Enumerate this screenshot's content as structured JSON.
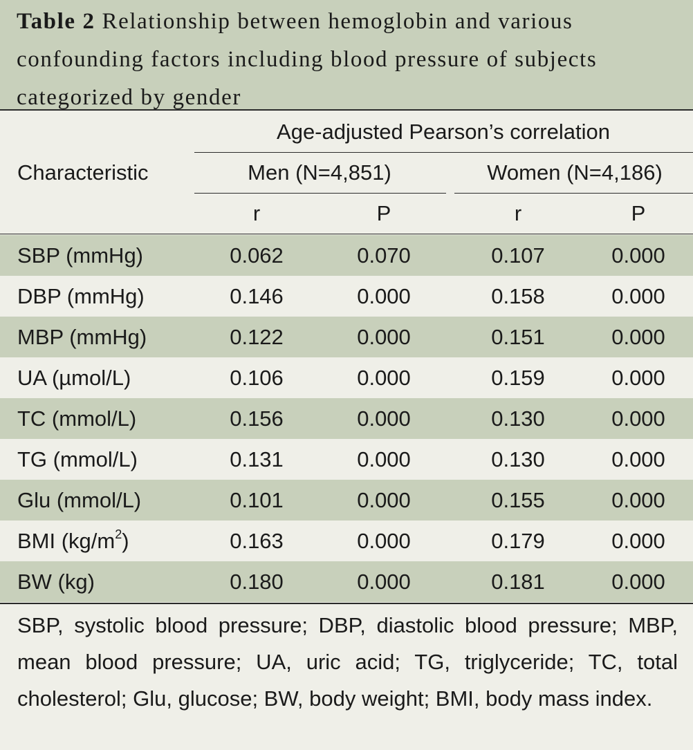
{
  "title": {
    "label": "Table 2",
    "text": "Relationship between hemoglobin and various confounding factors including blood pressure of subjects categorized by gender"
  },
  "header": {
    "characteristic": "Characteristic",
    "group": "Age-adjusted Pearson’s correlation",
    "men": "Men (N=4,851)",
    "women": "Women (N=4,186)",
    "men_r": "r",
    "men_p": "P",
    "women_r": "r",
    "women_p": "P"
  },
  "rows": [
    {
      "name": "SBP (mmHg)",
      "men_r": "0.062",
      "men_p": "0.070",
      "women_r": "0.107",
      "women_p": "0.000"
    },
    {
      "name": "DBP (mmHg)",
      "men_r": "0.146",
      "men_p": "0.000",
      "women_r": "0.158",
      "women_p": "0.000"
    },
    {
      "name": "MBP (mmHg)",
      "men_r": "0.122",
      "men_p": "0.000",
      "women_r": "0.151",
      "women_p": "0.000"
    },
    {
      "name": "UA (µmol/L)",
      "men_r": "0.106",
      "men_p": "0.000",
      "women_r": "0.159",
      "women_p": "0.000"
    },
    {
      "name": "TC (mmol/L)",
      "men_r": "0.156",
      "men_p": "0.000",
      "women_r": "0.130",
      "women_p": "0.000"
    },
    {
      "name": "TG (mmol/L)",
      "men_r": "0.131",
      "men_p": "0.000",
      "women_r": "0.130",
      "women_p": "0.000"
    },
    {
      "name": "Glu (mmol/L)",
      "men_r": "0.101",
      "men_p": "0.000",
      "women_r": "0.155",
      "women_p": "0.000"
    },
    {
      "name_prefix": "BMI (kg/m",
      "name_sup": "2",
      "name_suffix": ")",
      "men_r": "0.163",
      "men_p": "0.000",
      "women_r": "0.179",
      "women_p": "0.000"
    },
    {
      "name": "BW (kg)",
      "men_r": "0.180",
      "men_p": "0.000",
      "women_r": "0.181",
      "women_p": "0.000"
    }
  ],
  "footnote": "SBP, systolic blood pressure; DBP, diastolic blood pressure; MBP, mean blood pressure; UA, uric acid; TG, triglyceride; TC, total cholesterol; Glu, glucose; BW, body weight; BMI, body mass index.",
  "colors": {
    "shaded": "#c8d0bb",
    "background": "#efefe8",
    "rule": "#2a2a2a"
  }
}
